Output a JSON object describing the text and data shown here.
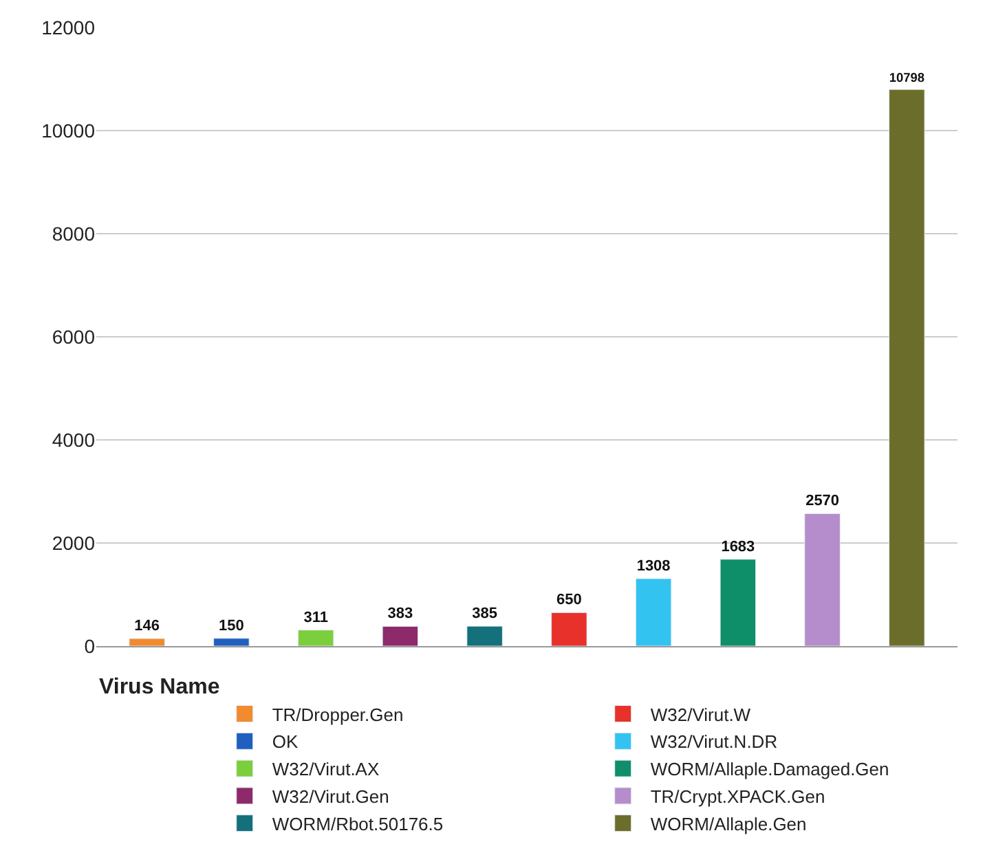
{
  "chart_data": {
    "type": "bar",
    "legend_title": "Virus Name",
    "categories": [
      null,
      null,
      null,
      null,
      null,
      null,
      null,
      null,
      null,
      null
    ],
    "series": [
      {
        "name": "TR/Dropper.Gen",
        "color": "#f28a2e",
        "values": [
          146,
          null,
          null,
          null,
          null,
          null,
          null,
          null,
          null,
          null
        ]
      },
      {
        "name": "OK",
        "color": "#1f5fbf",
        "values": [
          null,
          150,
          null,
          null,
          null,
          null,
          null,
          null,
          null,
          null
        ]
      },
      {
        "name": "W32/Virut.AX",
        "color": "#7ccf3c",
        "values": [
          null,
          null,
          311,
          null,
          null,
          null,
          null,
          null,
          null,
          null
        ]
      },
      {
        "name": "W32/Virut.Gen",
        "color": "#8e2a6a",
        "values": [
          null,
          null,
          null,
          383,
          null,
          null,
          null,
          null,
          null,
          null
        ]
      },
      {
        "name": "WORM/Rbot.50176.5",
        "color": "#14707a",
        "values": [
          null,
          null,
          null,
          null,
          385,
          null,
          null,
          null,
          null,
          null
        ]
      },
      {
        "name": "W32/Virut.W",
        "color": "#e8312a",
        "values": [
          null,
          null,
          null,
          null,
          null,
          650,
          null,
          null,
          null,
          null
        ]
      },
      {
        "name": "W32/Virut.N.DR",
        "color": "#33c3f0",
        "values": [
          null,
          null,
          null,
          null,
          null,
          null,
          1308,
          null,
          null,
          null
        ]
      },
      {
        "name": "WORM/Allaple.Damaged.Gen",
        "color": "#0e8f6a",
        "values": [
          null,
          null,
          null,
          null,
          null,
          null,
          null,
          1683,
          null,
          null
        ]
      },
      {
        "name": "TR/Crypt.XPACK.Gen",
        "color": "#b58ccc",
        "values": [
          null,
          null,
          null,
          null,
          null,
          null,
          null,
          null,
          2570,
          null
        ]
      },
      {
        "name": "WORM/Allaple.Gen",
        "color": "#6b6e2a",
        "values": [
          null,
          null,
          null,
          null,
          null,
          null,
          null,
          null,
          null,
          10798
        ]
      }
    ],
    "ylim": [
      0,
      12000
    ],
    "yticks": [
      0,
      2000,
      4000,
      6000,
      8000,
      10000,
      12000
    ],
    "grid": "y",
    "legend": "bottom",
    "data_labels": true
  }
}
